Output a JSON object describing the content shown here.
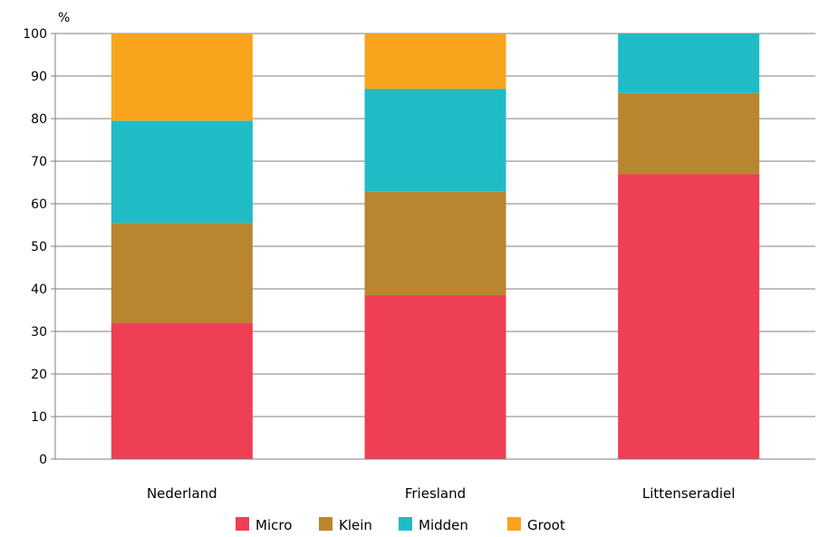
{
  "chart_data": {
    "type": "bar",
    "stacked": true,
    "title": "",
    "xlabel": "",
    "ylabel": "%",
    "ylim": [
      0,
      100
    ],
    "yticks": [
      0,
      10,
      20,
      30,
      40,
      50,
      60,
      70,
      80,
      90,
      100
    ],
    "grid": true,
    "legend_position": "bottom",
    "categories": [
      "Nederland",
      "Friesland",
      "Littenseradiel"
    ],
    "series": [
      {
        "name": "Micro",
        "color": "#ee3f55",
        "values": [
          32,
          38.5,
          67
        ]
      },
      {
        "name": "Klein",
        "color": "#b8862f",
        "values": [
          23.5,
          24.3,
          19
        ]
      },
      {
        "name": "Midden",
        "color": "#1fbcc6",
        "values": [
          24,
          24.2,
          14
        ]
      },
      {
        "name": "Groot",
        "color": "#f8a51d",
        "values": [
          20.5,
          13,
          0
        ]
      }
    ]
  }
}
